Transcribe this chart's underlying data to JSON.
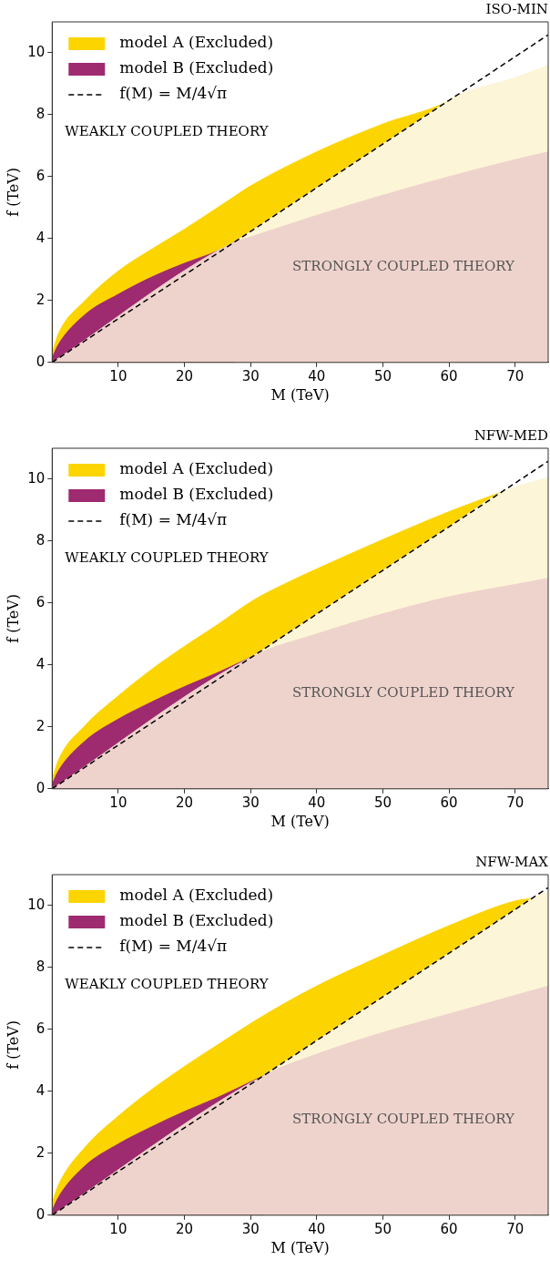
{
  "chart_data": [
    {
      "type": "area",
      "title": "ISO-MIN",
      "xlabel": "M (TeV)",
      "ylabel": "f (TeV)",
      "xlim": [
        0,
        75
      ],
      "ylim": [
        0,
        11
      ],
      "xticks": [
        10,
        20,
        30,
        40,
        50,
        60,
        70
      ],
      "yticks": [
        0,
        2,
        4,
        6,
        8,
        10
      ],
      "legend": "top left",
      "annotations": [
        "WEAKLY COUPLED THEORY",
        "STRONGLY COUPLED THEORY"
      ],
      "series": [
        {
          "name": "model A (Excluded)",
          "type": "area",
          "color": "#fcd400",
          "x": [
            0,
            1,
            5,
            10,
            15,
            20,
            25,
            27.5,
            30,
            40,
            50,
            60,
            61
          ],
          "values": [
            0.3,
            0.95,
            2.0,
            2.95,
            3.65,
            4.3,
            5.0,
            5.35,
            5.7,
            6.8,
            7.7,
            8.45,
            8.6
          ]
        },
        {
          "type": "area",
          "color": "#fdf5d7",
          "x": [
            27.5,
            30,
            40,
            50,
            60,
            61,
            70,
            75
          ],
          "values": [
            3.88,
            4.23,
            5.64,
            7.05,
            8.46,
            8.6,
            9.2,
            9.6
          ]
        },
        {
          "name": "model B (Excluded)",
          "type": "area",
          "color": "#9e2a70",
          "x": [
            0,
            1,
            5,
            10,
            15,
            20,
            25,
            27.5
          ],
          "values": [
            0.15,
            0.6,
            1.55,
            2.2,
            2.75,
            3.2,
            3.6,
            3.88
          ]
        },
        {
          "type": "area",
          "color": "#eed3cc",
          "x": [
            0,
            27.5,
            30,
            40,
            50,
            60,
            70,
            75
          ],
          "values": [
            0,
            3.88,
            4.05,
            4.75,
            5.4,
            6.0,
            6.55,
            6.8
          ]
        },
        {
          "name": "f(M) = M/4√π",
          "type": "line",
          "color": "#000000",
          "line_style": "dashed",
          "x": [
            0,
            75
          ],
          "values": [
            0,
            10.58
          ]
        }
      ]
    },
    {
      "type": "area",
      "title": "NFW-MED",
      "xlabel": "M (TeV)",
      "ylabel": "f (TeV)",
      "xlim": [
        0,
        75
      ],
      "ylim": [
        0,
        11
      ],
      "xticks": [
        10,
        20,
        30,
        40,
        50,
        60,
        70
      ],
      "yticks": [
        0,
        2,
        4,
        6,
        8,
        10
      ],
      "legend": "top left",
      "annotations": [
        "WEAKLY COUPLED THEORY",
        "STRONGLY COUPLED THEORY"
      ],
      "series": [
        {
          "name": "model A (Excluded)",
          "type": "area",
          "color": "#fcd400",
          "x": [
            0,
            1,
            5,
            10,
            15,
            20,
            25,
            30.5,
            35,
            40,
            50,
            60,
            68
          ],
          "values": [
            0.3,
            0.95,
            2.05,
            3.0,
            3.85,
            4.6,
            5.3,
            6.1,
            6.6,
            7.1,
            8.05,
            8.95,
            9.59
          ]
        },
        {
          "type": "area",
          "color": "#fdf5d7",
          "x": [
            30.5,
            40,
            50,
            60,
            68,
            70,
            75
          ],
          "values": [
            4.3,
            5.64,
            7.05,
            8.46,
            9.59,
            9.75,
            10.05
          ]
        },
        {
          "name": "model B (Excluded)",
          "type": "area",
          "color": "#9e2a70",
          "x": [
            0,
            1,
            5,
            10,
            15,
            20,
            25,
            30.5
          ],
          "values": [
            0.15,
            0.6,
            1.55,
            2.25,
            2.8,
            3.3,
            3.75,
            4.3
          ]
        },
        {
          "type": "area",
          "color": "#eed3cc",
          "x": [
            0,
            30.5,
            40,
            50,
            60,
            70,
            75
          ],
          "values": [
            0,
            4.3,
            5.0,
            5.65,
            6.2,
            6.6,
            6.8
          ]
        },
        {
          "name": "f(M) = M/4√π",
          "type": "line",
          "color": "#000000",
          "line_style": "dashed",
          "x": [
            0,
            75
          ],
          "values": [
            0,
            10.58
          ]
        }
      ]
    },
    {
      "type": "area",
      "title": "NFW-MAX",
      "xlabel": "M (TeV)",
      "ylabel": "f (TeV)",
      "xlim": [
        0,
        75
      ],
      "ylim": [
        0,
        11
      ],
      "xticks": [
        10,
        20,
        30,
        40,
        50,
        60,
        70
      ],
      "yticks": [
        0,
        2,
        4,
        6,
        8,
        10
      ],
      "legend": "top left",
      "annotations": [
        "WEAKLY COUPLED THEORY",
        "STRONGLY COUPLED THEORY"
      ],
      "series": [
        {
          "name": "model A (Excluded)",
          "type": "area",
          "color": "#fcd400",
          "x": [
            0,
            1,
            5,
            10,
            15,
            20,
            25,
            32,
            40,
            50,
            60,
            70,
            72.5
          ],
          "values": [
            0.4,
            1.0,
            2.2,
            3.2,
            4.05,
            4.8,
            5.5,
            6.45,
            7.4,
            8.4,
            9.35,
            10.15,
            10.23
          ]
        },
        {
          "type": "area",
          "color": "#fdf5d7",
          "x": [
            32,
            40,
            50,
            60,
            70,
            72.5,
            75
          ],
          "values": [
            4.51,
            5.64,
            7.05,
            8.46,
            9.87,
            10.23,
            10.45
          ]
        },
        {
          "name": "model B (Excluded)",
          "type": "area",
          "color": "#9e2a70",
          "x": [
            0,
            1,
            5,
            10,
            15,
            20,
            25,
            32
          ],
          "values": [
            0.15,
            0.6,
            1.6,
            2.3,
            2.85,
            3.35,
            3.8,
            4.51
          ]
        },
        {
          "type": "area",
          "color": "#eed3cc",
          "x": [
            0,
            32,
            40,
            50,
            60,
            70,
            75
          ],
          "values": [
            0,
            4.51,
            5.2,
            5.9,
            6.5,
            7.1,
            7.4
          ]
        },
        {
          "name": "f(M) = M/4√π",
          "type": "line",
          "color": "#000000",
          "line_style": "dashed",
          "x": [
            0,
            75
          ],
          "values": [
            0,
            10.58
          ]
        }
      ]
    }
  ]
}
